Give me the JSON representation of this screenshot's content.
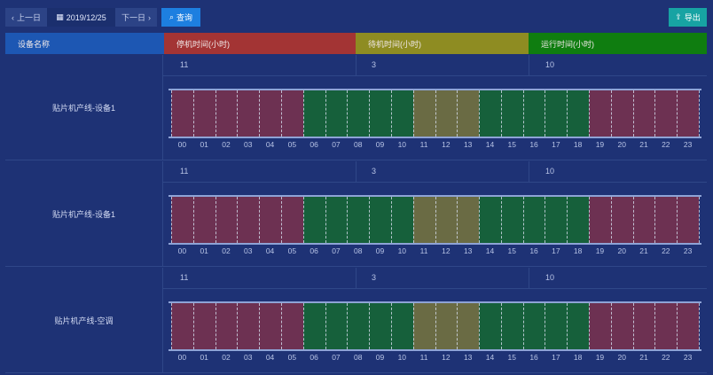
{
  "toolbar": {
    "prev_label": "上一日",
    "date": "2019/12/25",
    "next_label": "下一日",
    "query_label": "查询",
    "export_label": "导出"
  },
  "header": {
    "name_col": "设备名称",
    "down_col": "停机时间(小时)",
    "standby_col": "待机时间(小时)",
    "run_col": "运行时间(小时)"
  },
  "colors": {
    "down": "#a33434",
    "standby": "#8e8c22",
    "run": "#0f7d10",
    "bar_down": "#6d3152",
    "bar_standby": "#6a6b44",
    "bar_run": "#16603b"
  },
  "hours": [
    "00",
    "01",
    "02",
    "03",
    "04",
    "05",
    "06",
    "07",
    "08",
    "09",
    "10",
    "11",
    "12",
    "13",
    "14",
    "15",
    "16",
    "17",
    "18",
    "19",
    "20",
    "21",
    "22",
    "23"
  ],
  "rows": [
    {
      "name": "贴片机产线-设备1",
      "down": "11",
      "standby": "3",
      "run": "10",
      "timeline": [
        "down",
        "down",
        "down",
        "down",
        "down",
        "down",
        "run",
        "run",
        "run",
        "run",
        "run",
        "standby",
        "standby",
        "standby",
        "run",
        "run",
        "run",
        "run",
        "run",
        "down",
        "down",
        "down",
        "down",
        "down"
      ]
    },
    {
      "name": "贴片机产线-设备1",
      "down": "11",
      "standby": "3",
      "run": "10",
      "timeline": [
        "down",
        "down",
        "down",
        "down",
        "down",
        "down",
        "run",
        "run",
        "run",
        "run",
        "run",
        "standby",
        "standby",
        "standby",
        "run",
        "run",
        "run",
        "run",
        "run",
        "down",
        "down",
        "down",
        "down",
        "down"
      ]
    },
    {
      "name": "贴片机产线-空调",
      "down": "11",
      "standby": "3",
      "run": "10",
      "timeline": [
        "down",
        "down",
        "down",
        "down",
        "down",
        "down",
        "run",
        "run",
        "run",
        "run",
        "run",
        "standby",
        "standby",
        "standby",
        "run",
        "run",
        "run",
        "run",
        "run",
        "down",
        "down",
        "down",
        "down",
        "down"
      ]
    }
  ]
}
